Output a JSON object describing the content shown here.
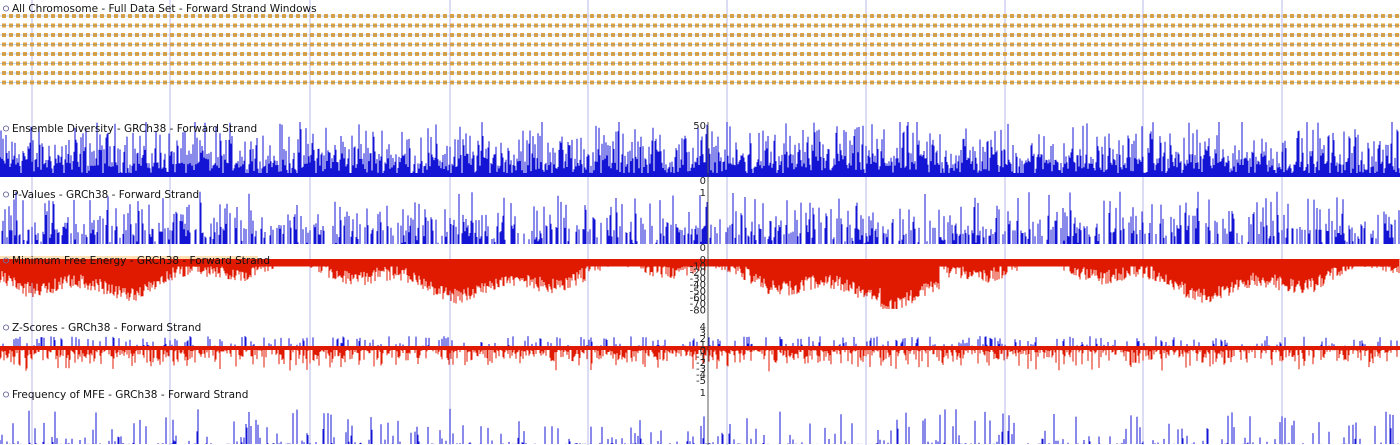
{
  "tracks": [
    {
      "id": "all",
      "label": "All Chromosome - Full Data Set - Forward Strand Windows",
      "kind": "feature"
    },
    {
      "id": "ed",
      "label": "Ensemble Diversity - GRCh38 - Forward Strand",
      "kind": "bar",
      "color": "#1414d4",
      "ticks": [
        "50",
        "0"
      ]
    },
    {
      "id": "pv",
      "label": "P-Values - GRCh38 - Forward Strand",
      "kind": "bar",
      "color": "#1414d4",
      "ticks": [
        "1",
        "0"
      ]
    },
    {
      "id": "mfe",
      "label": "Minimum Free Energy - GRCh38 - Forward Strand",
      "kind": "neg",
      "color": "#e01a00",
      "highlighted": true,
      "ticks": [
        "0",
        "-10",
        "-20",
        "-30",
        "-40",
        "-50",
        "-60",
        "-70",
        "-80"
      ]
    },
    {
      "id": "z",
      "label": "Z-Scores - GRCh38 - Forward Strand",
      "kind": "bidir",
      "pos_color": "#1414d4",
      "neg_color": "#e01a00",
      "ticks": [
        "4",
        "3",
        "2",
        "1",
        "0",
        "-1",
        "-2",
        "-3",
        "-4",
        "-5"
      ]
    },
    {
      "id": "freq",
      "label": "Frequency of MFE - GRCh38 - Forward Strand",
      "kind": "bar",
      "color": "#1414d4",
      "ticks": [
        "1"
      ]
    }
  ],
  "colors": {
    "feature_fill": "#e2a33d",
    "feature_line": "#6e8fc0",
    "gridline": "#b8b8ea",
    "highlight_bg": "#fde0b6",
    "background": "#ffffff"
  }
}
